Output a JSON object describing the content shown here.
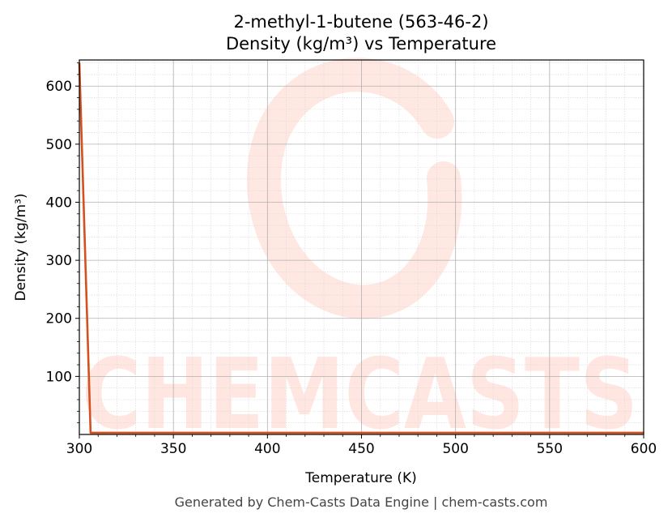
{
  "chart_data": {
    "type": "line",
    "title_line1": "2-methyl-1-butene (563-46-2)",
    "title_line2": "Density (kg/m³) vs Temperature",
    "xlabel": "Temperature (K)",
    "ylabel": "Density (kg/m³)",
    "xlim": [
      300,
      600
    ],
    "ylim": [
      0,
      645
    ],
    "x_ticks": [
      300,
      350,
      400,
      450,
      500,
      550,
      600
    ],
    "y_ticks": [
      100,
      200,
      300,
      400,
      500,
      600
    ],
    "x_tick_labels": [
      "300",
      "350",
      "400",
      "450",
      "500",
      "550",
      "600"
    ],
    "y_tick_labels": [
      "100",
      "200",
      "300",
      "400",
      "500",
      "600"
    ],
    "grid": true,
    "series": [
      {
        "color": "#d4501e",
        "x": [
          300,
          306,
          600
        ],
        "y": [
          640,
          3,
          3
        ]
      }
    ],
    "watermark": "CHEMCASTS",
    "footer": "Generated by Chem-Casts Data Engine | chem-casts.com"
  }
}
